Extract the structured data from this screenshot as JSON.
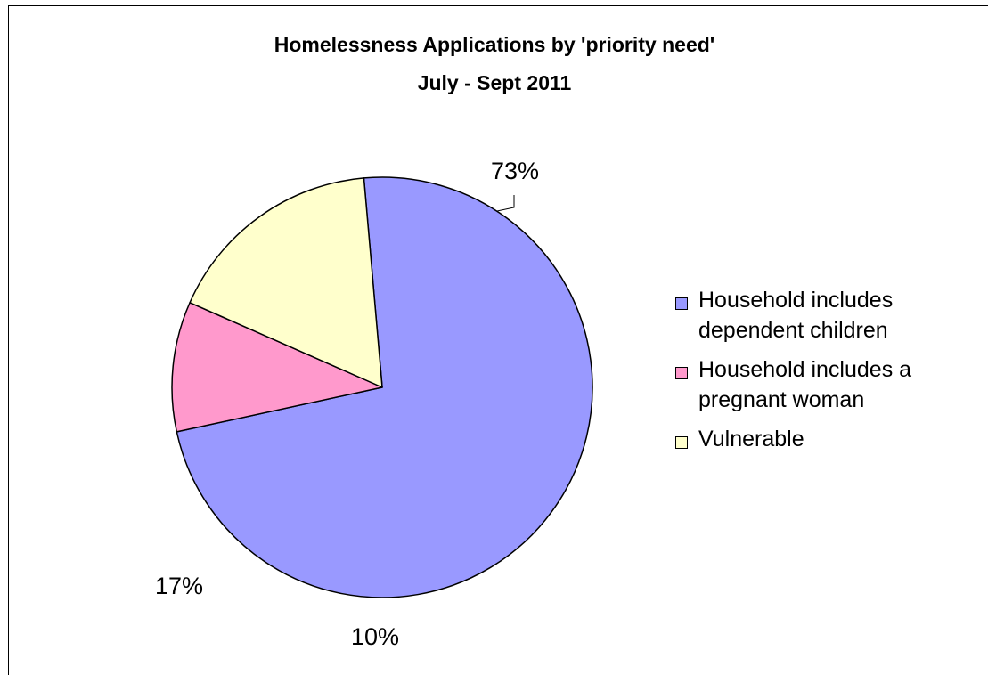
{
  "chart_data": {
    "type": "pie",
    "title": "Homelessness Applications by 'priority need'",
    "subtitle": "July - Sept 2011",
    "slices": [
      {
        "name": "Household includes dependent children",
        "legend_lines": [
          "Household includes",
          "dependent children"
        ],
        "value": 73,
        "label": "73%",
        "color": "#9999ff"
      },
      {
        "name": "Household includes a pregnant woman",
        "legend_lines": [
          "Household includes a",
          "pregnant woman"
        ],
        "value": 10,
        "label": "10%",
        "color": "#ff99cc"
      },
      {
        "name": "Vulnerable",
        "legend_lines": [
          "Vulnerable"
        ],
        "value": 17,
        "label": "17%",
        "color": "#ffffcc"
      }
    ],
    "legend_position": "right"
  }
}
